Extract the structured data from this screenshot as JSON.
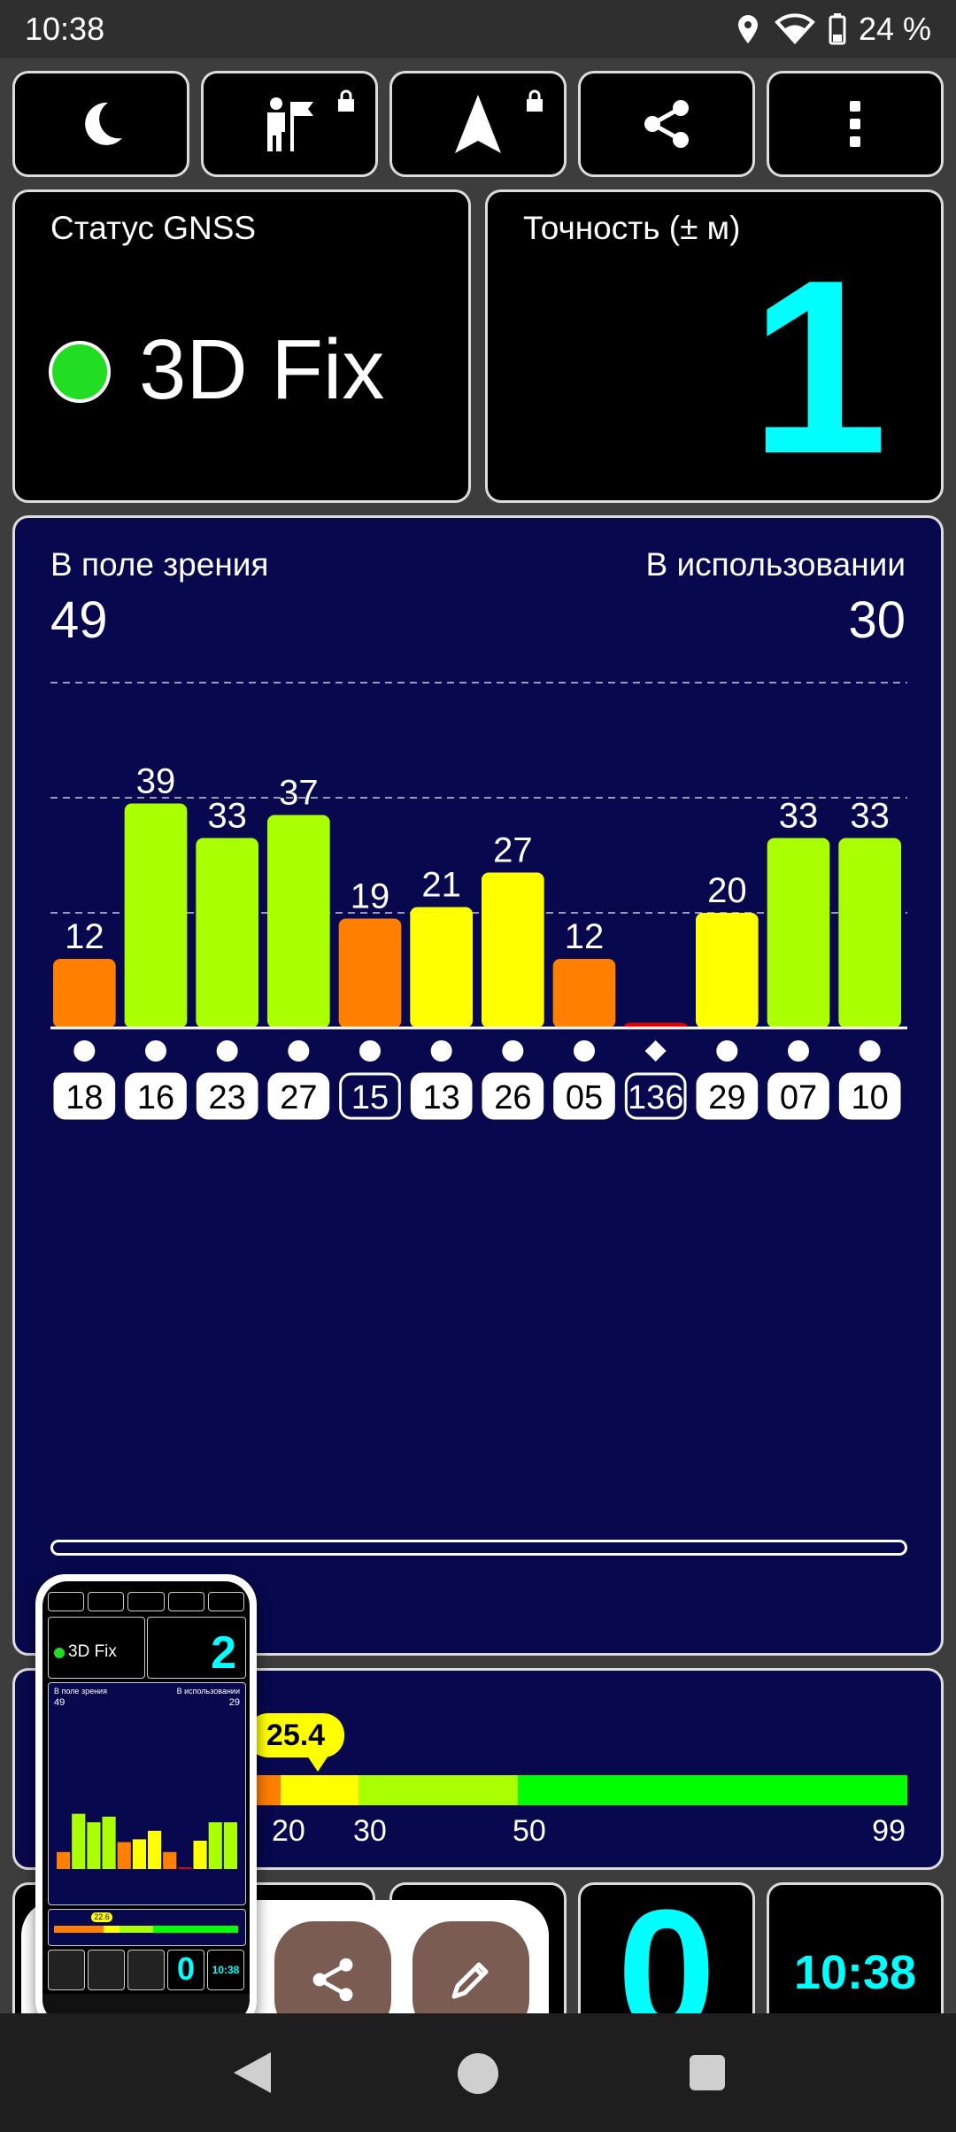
{
  "status_bar": {
    "time": "10:38",
    "battery": "24 %"
  },
  "toolbar": {
    "night_mode": "moon-icon",
    "poi": "flag-person-icon",
    "navigation": "navigation-arrow-icon",
    "share": "share-icon",
    "more": "more-vert-icon"
  },
  "gnss": {
    "label": "Статус GNSS",
    "status": "3D Fix",
    "status_color": "#22dd22"
  },
  "accuracy": {
    "label": "Точность (± м)",
    "value": "1",
    "color": "#00ffff"
  },
  "satellites": {
    "in_view_label": "В поле зрения",
    "in_view": "49",
    "in_use_label": "В использовании",
    "in_use": "30"
  },
  "chart_data": {
    "type": "bar",
    "categories": [
      "18",
      "16",
      "23",
      "27",
      "15",
      "13",
      "26",
      "05",
      "136",
      "29",
      "07",
      "10"
    ],
    "values": [
      12,
      39,
      33,
      37,
      19,
      21,
      27,
      12,
      0,
      20,
      33,
      33
    ],
    "colors": [
      "#ff7f00",
      "#aaff00",
      "#aaff00",
      "#aaff00",
      "#ff7f00",
      "#ffff00",
      "#ffff00",
      "#ff7f00",
      "#e00000",
      "#ffff00",
      "#aaff00",
      "#aaff00"
    ],
    "markers": [
      "dot",
      "dot",
      "dot",
      "dot",
      "dot",
      "dot",
      "dot",
      "dot",
      "diamond",
      "dot",
      "dot",
      "dot"
    ],
    "boxed": [
      false,
      false,
      false,
      false,
      true,
      false,
      false,
      false,
      true,
      false,
      false,
      false
    ],
    "ylim": [
      0,
      60
    ],
    "grid": true
  },
  "snr": {
    "pointer": "25.4",
    "ticks": [
      "20",
      "30",
      "50",
      "99"
    ],
    "colors": {
      "orange": "#ff7f00",
      "yellow": "#ffff00",
      "lime": "#aaff00",
      "green": "#00ff00"
    }
  },
  "bottom": {
    "satellite_count": "0",
    "clock": "10:38"
  },
  "popup": {
    "share": "share-icon",
    "edit": "pencil-icon"
  },
  "thumbnail": {
    "status": "3D Fix",
    "accuracy": "2",
    "in_view_label": "В поле зрения",
    "in_view": "49",
    "in_use_label": "В использовании",
    "in_use": "29",
    "pointer": "22.6",
    "count": "0",
    "clock": "10:38"
  }
}
